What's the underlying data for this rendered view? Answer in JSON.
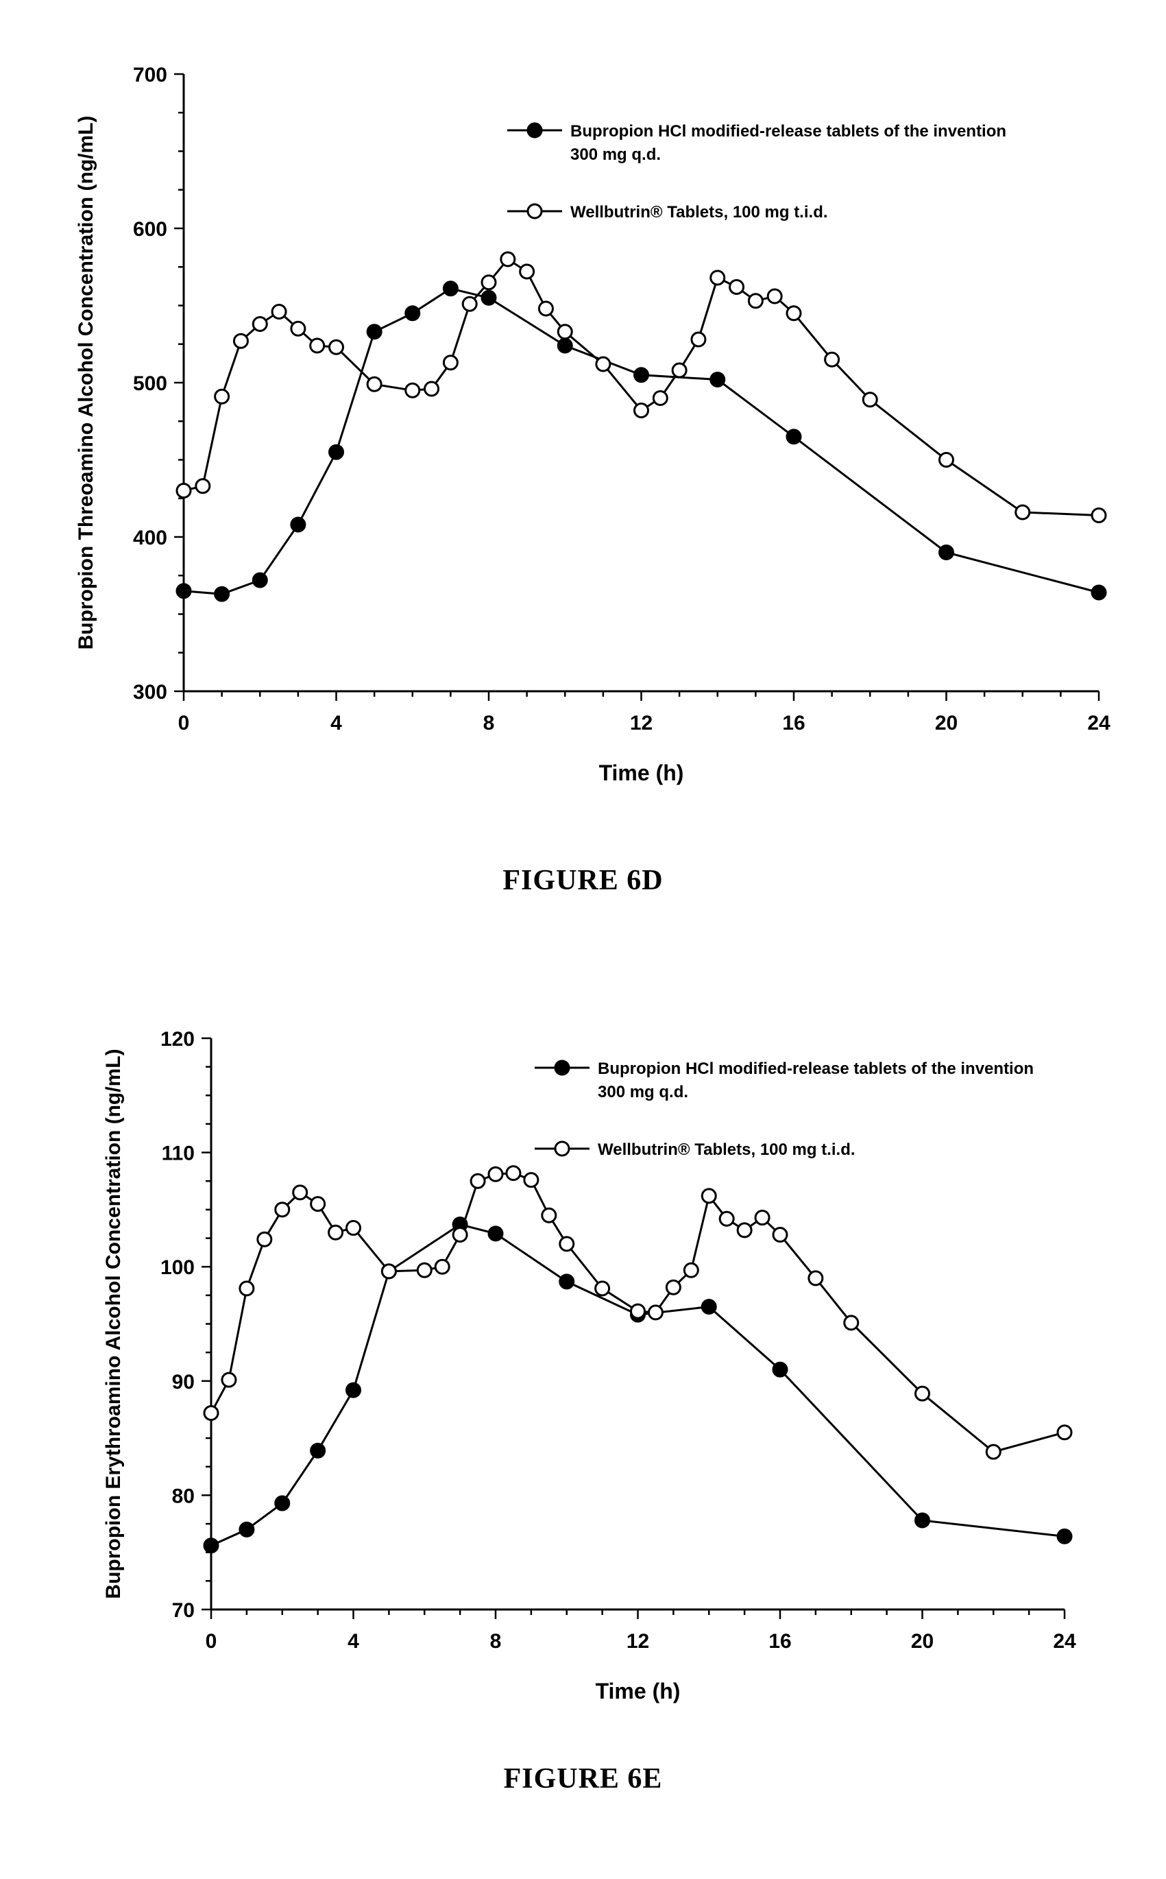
{
  "chart_data": [
    {
      "type": "line",
      "figure_label": "FIGURE 6D",
      "ylabel": "Bupropion Threoamino Alcohol Concentration (ng/mL)",
      "xlabel": "Time (h)",
      "xlim": [
        0,
        24
      ],
      "ylim": [
        300,
        700
      ],
      "xticks": [
        0,
        4,
        8,
        12,
        16,
        20,
        24
      ],
      "yticks": [
        300,
        400,
        500,
        600,
        700
      ],
      "legend_position": "top-right",
      "series": [
        {
          "name": "Bupropion HCl modified-release tablets of the invention",
          "name_line2": "300 mg q.d.",
          "marker": "filled-circle",
          "x": [
            0,
            1,
            2,
            3,
            4,
            5,
            6,
            7,
            8,
            10,
            12,
            14,
            16,
            20,
            24
          ],
          "y": [
            365,
            363,
            372,
            408,
            455,
            533,
            545,
            561,
            555,
            524,
            505,
            502,
            465,
            390,
            364
          ]
        },
        {
          "name": "Wellbutrin® Tablets, 100 mg t.i.d.",
          "marker": "open-circle",
          "x": [
            0,
            0.5,
            1,
            1.5,
            2,
            2.5,
            3,
            3.5,
            4,
            5,
            6,
            6.5,
            7,
            7.5,
            8,
            8.5,
            9,
            9.5,
            10,
            11,
            12,
            12.5,
            13,
            13.5,
            14,
            14.5,
            15,
            15.5,
            16,
            17,
            18,
            20,
            22,
            24
          ],
          "y": [
            430,
            433,
            491,
            527,
            538,
            546,
            535,
            524,
            523,
            499,
            495,
            496,
            513,
            551,
            565,
            580,
            572,
            548,
            533,
            512,
            482,
            490,
            508,
            528,
            568,
            562,
            553,
            556,
            545,
            515,
            489,
            450,
            416,
            414
          ]
        }
      ]
    },
    {
      "type": "line",
      "figure_label": "FIGURE 6E",
      "ylabel": "Bupropion Erythroamino Alcohol Concentration (ng/mL)",
      "xlabel": "Time (h)",
      "xlim": [
        0,
        24
      ],
      "ylim": [
        70,
        120
      ],
      "xticks": [
        0,
        4,
        8,
        12,
        16,
        20,
        24
      ],
      "yticks": [
        70,
        80,
        90,
        100,
        110,
        120
      ],
      "legend_position": "top-right",
      "series": [
        {
          "name": "Bupropion HCl modified-release tablets of the invention",
          "name_line2": "300 mg q.d.",
          "marker": "filled-circle",
          "x": [
            0,
            1,
            2,
            3,
            4,
            5,
            7,
            8,
            10,
            12,
            14,
            16,
            20,
            24
          ],
          "y": [
            75.6,
            77,
            79.3,
            83.9,
            89.2,
            99.6,
            103.7,
            102.9,
            98.7,
            95.8,
            96.5,
            91,
            77.8,
            76.4
          ]
        },
        {
          "name": "Wellbutrin® Tablets, 100 mg t.i.d.",
          "marker": "open-circle",
          "x": [
            0,
            0.5,
            1,
            1.5,
            2,
            2.5,
            3,
            3.5,
            4,
            5,
            6,
            6.5,
            7,
            7.5,
            8,
            8.5,
            9,
            9.5,
            10,
            11,
            12,
            12.5,
            13,
            13.5,
            14,
            14.5,
            15,
            15.5,
            16,
            17,
            18,
            20,
            22,
            24
          ],
          "y": [
            87.2,
            90.1,
            98.1,
            102.4,
            105,
            106.5,
            105.5,
            103,
            103.4,
            99.6,
            99.7,
            100,
            102.8,
            107.5,
            108.1,
            108.2,
            107.6,
            104.5,
            102,
            98.1,
            96.1,
            96,
            98.2,
            99.7,
            106.2,
            104.2,
            103.2,
            104.3,
            102.8,
            99,
            95.1,
            88.9,
            83.8,
            85.5
          ]
        }
      ]
    }
  ]
}
